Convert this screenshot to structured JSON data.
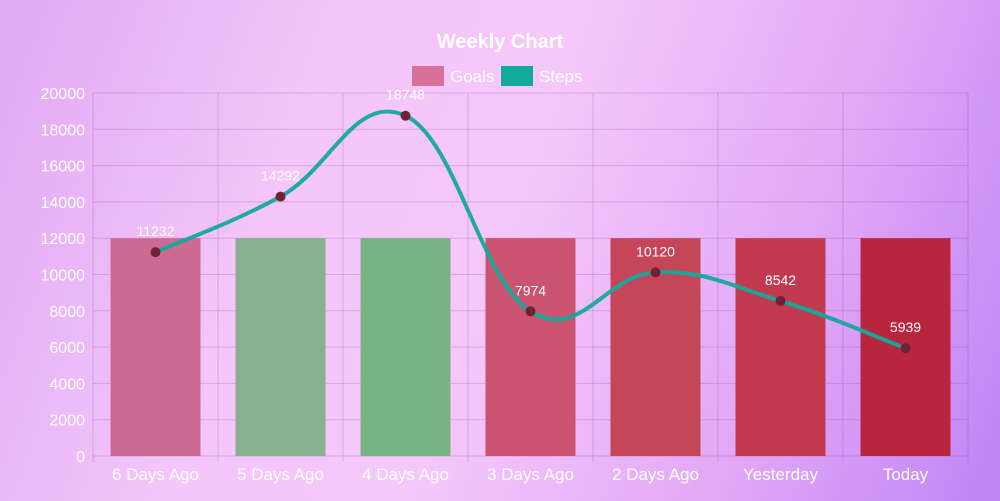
{
  "chart_data": {
    "type": "bar",
    "title": "Weekly Chart",
    "categories": [
      "6 Days Ago",
      "5 Days Ago",
      "4 Days Ago",
      "3 Days Ago",
      "2 Days Ago",
      "Yesterday",
      "Today"
    ],
    "ylim": [
      0,
      20000
    ],
    "yticks": [
      0,
      2000,
      4000,
      6000,
      8000,
      10000,
      12000,
      14000,
      16000,
      18000,
      20000
    ],
    "grid": true,
    "legend_position": "top",
    "series": [
      {
        "name": "Goals",
        "type": "bar",
        "values": [
          12000,
          12000,
          12000,
          12000,
          12000,
          12000,
          12000
        ],
        "legend_color": "#d9709a",
        "bar_colors": [
          "#cc6b91",
          "#86b08e",
          "#77b483",
          "#ca5470",
          "#c54559",
          "#c13a4e",
          "#b8263d"
        ]
      },
      {
        "name": "Steps",
        "type": "line",
        "values": [
          11232,
          14292,
          18748,
          7974,
          10120,
          8542,
          5939
        ],
        "color": "#12aa9b",
        "point_color": "#6f2436"
      }
    ]
  }
}
